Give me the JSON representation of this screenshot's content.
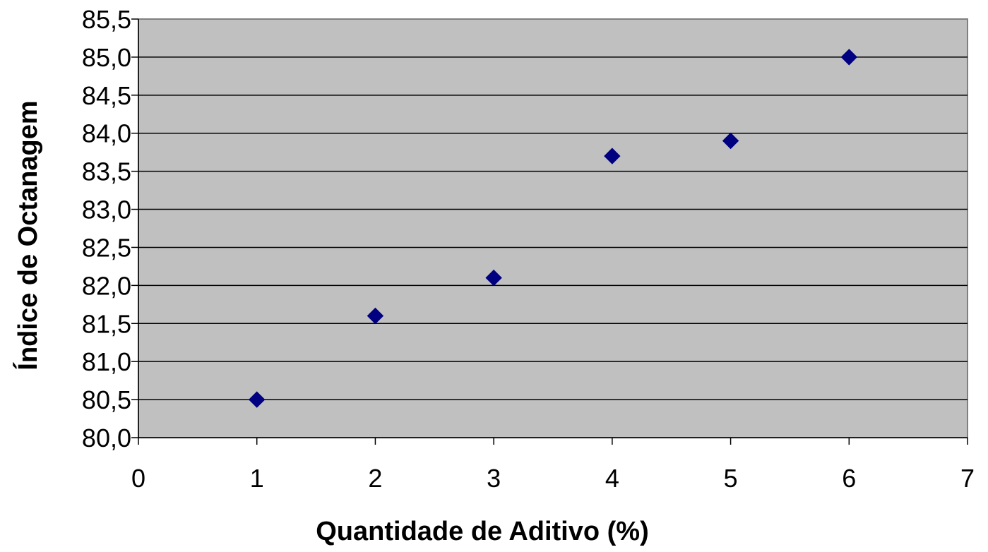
{
  "chart_data": {
    "type": "scatter",
    "xlabel": "Quantidade de Aditivo (%)",
    "ylabel": "Índice de Octanagem",
    "xlim": [
      0,
      7
    ],
    "ylim": [
      80.0,
      85.5
    ],
    "xticks": [
      "0",
      "1",
      "2",
      "3",
      "4",
      "5",
      "6",
      "7"
    ],
    "yticks": [
      "80,0",
      "80,5",
      "81,0",
      "81,5",
      "82,0",
      "82,5",
      "83,0",
      "83,5",
      "84,0",
      "84,5",
      "85,0",
      "85,5"
    ],
    "grid": "horizontal",
    "plot_background": "#C0C0C0",
    "marker_color": "#000080",
    "marker_shape": "diamond",
    "series": [
      {
        "points": [
          {
            "x": 1,
            "y": 80.5
          },
          {
            "x": 2,
            "y": 81.6
          },
          {
            "x": 3,
            "y": 82.1
          },
          {
            "x": 4,
            "y": 83.7
          },
          {
            "x": 5,
            "y": 83.9
          },
          {
            "x": 6,
            "y": 85.0
          }
        ]
      }
    ]
  }
}
